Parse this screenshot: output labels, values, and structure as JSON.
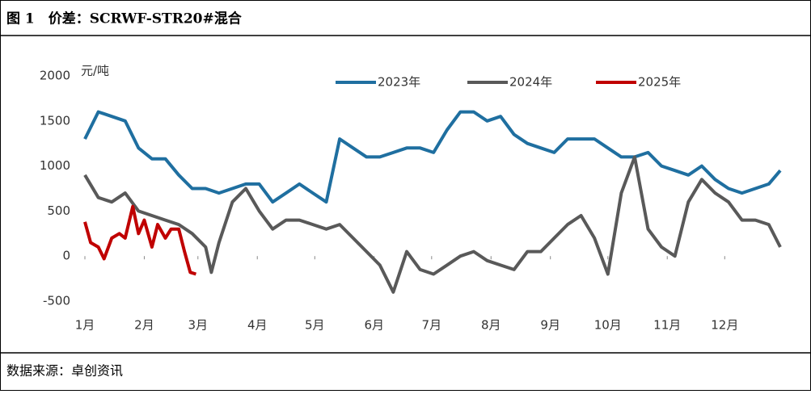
{
  "title": "图 1　价差：SCRWF-STR20#混合",
  "source": "数据来源：卓创资讯",
  "chart_data": {
    "type": "line",
    "y_label": "元/吨",
    "xlim": [
      0,
      363
    ],
    "ylim": [
      -500,
      2000
    ],
    "yticks": [
      -500,
      0,
      500,
      1000,
      1500,
      2000
    ],
    "xticks": [
      {
        "value": 0,
        "label": "1月"
      },
      {
        "value": 31,
        "label": "2月"
      },
      {
        "value": 59,
        "label": "3月"
      },
      {
        "value": 90,
        "label": "4月"
      },
      {
        "value": 120,
        "label": "5月"
      },
      {
        "value": 151,
        "label": "6月"
      },
      {
        "value": 181,
        "label": "7月"
      },
      {
        "value": 212,
        "label": "8月"
      },
      {
        "value": 243,
        "label": "9月"
      },
      {
        "value": 273,
        "label": "10月"
      },
      {
        "value": 304,
        "label": "11月"
      },
      {
        "value": 334,
        "label": "12月"
      }
    ],
    "legend": "top",
    "series": [
      {
        "name": "2023年",
        "color": "#1f6fa0",
        "x": [
          0,
          7,
          14,
          21,
          28,
          35,
          42,
          49,
          56,
          63,
          70,
          77,
          84,
          91,
          98,
          105,
          112,
          119,
          126,
          133,
          140,
          147,
          154,
          161,
          168,
          175,
          182,
          189,
          196,
          203,
          210,
          217,
          224,
          231,
          238,
          245,
          252,
          259,
          266,
          273,
          280,
          287,
          294,
          301,
          308,
          315,
          322,
          329,
          336,
          343,
          350,
          357,
          363
        ],
        "values": [
          1300,
          1600,
          1550,
          1500,
          1200,
          1080,
          1080,
          900,
          750,
          750,
          700,
          750,
          800,
          800,
          600,
          700,
          800,
          700,
          600,
          1300,
          1200,
          1100,
          1100,
          1150,
          1200,
          1200,
          1150,
          1400,
          1600,
          1600,
          1500,
          1550,
          1350,
          1250,
          1200,
          1150,
          1300,
          1300,
          1300,
          1200,
          1100,
          1100,
          1150,
          1000,
          950,
          900,
          1000,
          850,
          750,
          700,
          750,
          800,
          950
        ]
      },
      {
        "name": "2024年",
        "color": "#595959",
        "x": [
          0,
          7,
          14,
          21,
          28,
          35,
          42,
          49,
          56,
          63,
          66,
          70,
          77,
          84,
          91,
          98,
          105,
          112,
          119,
          126,
          133,
          140,
          147,
          154,
          161,
          168,
          175,
          182,
          189,
          196,
          203,
          210,
          217,
          224,
          231,
          238,
          245,
          252,
          259,
          266,
          273,
          280,
          287,
          294,
          301,
          308,
          315,
          322,
          329,
          336,
          343,
          350,
          357,
          363
        ],
        "values": [
          900,
          650,
          600,
          700,
          500,
          450,
          400,
          350,
          250,
          100,
          -180,
          150,
          600,
          750,
          500,
          300,
          400,
          400,
          350,
          300,
          350,
          200,
          50,
          -100,
          -400,
          50,
          -150,
          -200,
          -100,
          0,
          50,
          -50,
          -100,
          -150,
          50,
          50,
          200,
          350,
          450,
          200,
          -200,
          700,
          1100,
          300,
          100,
          0,
          600,
          850,
          700,
          600,
          400,
          400,
          350,
          100
        ]
      },
      {
        "name": "2025年",
        "color": "#c00000",
        "x": [
          0,
          3,
          7,
          10,
          14,
          18,
          21,
          25,
          28,
          31,
          35,
          38,
          42,
          45,
          49,
          52,
          55,
          58
        ],
        "values": [
          380,
          150,
          100,
          -30,
          200,
          250,
          200,
          550,
          250,
          400,
          100,
          350,
          200,
          300,
          300,
          50,
          -180,
          -200
        ]
      }
    ]
  }
}
